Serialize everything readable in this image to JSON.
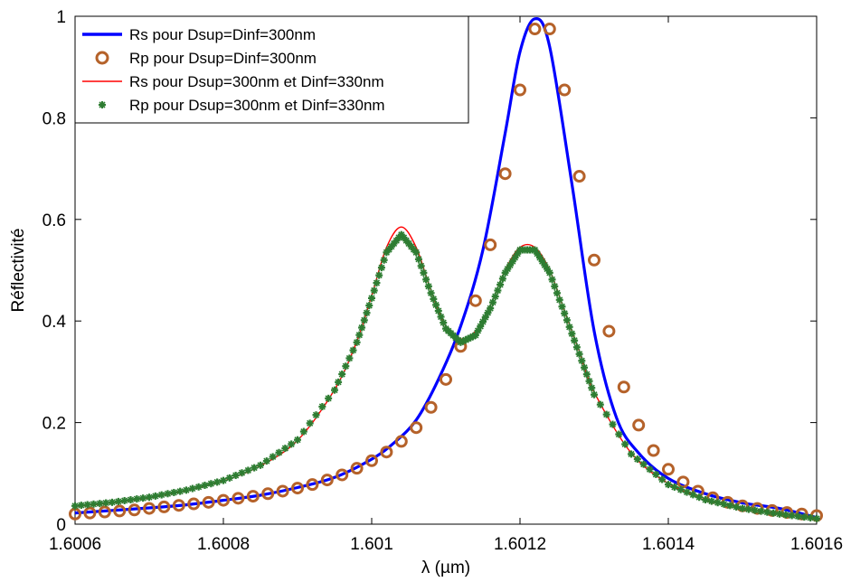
{
  "chart_data": {
    "type": "line",
    "xlabel": "λ (µm)",
    "ylabel": "Réflectivité",
    "xlim": [
      1.6006,
      1.6016
    ],
    "ylim": [
      0,
      1
    ],
    "x_ticks": [
      "1.6006",
      "1.6008",
      "1.601",
      "1.6012",
      "1.6014",
      "1.6016"
    ],
    "y_ticks": [
      "0",
      "0.2",
      "0.4",
      "0.6",
      "0.8",
      "1"
    ],
    "grid": false,
    "legend_position": "top-left",
    "series": [
      {
        "name": "Rs pour Dsup=Dinf=300nm",
        "style": "solid-thick",
        "color": "#0000ff",
        "x": [
          1.6006,
          1.60065,
          1.6007,
          1.60075,
          1.6008,
          1.60085,
          1.6009,
          1.60095,
          1.601,
          1.60103,
          1.60106,
          1.60109,
          1.60112,
          1.60115,
          1.60118,
          1.6012,
          1.60122,
          1.60124,
          1.60127,
          1.6013,
          1.60133,
          1.60136,
          1.6014,
          1.60145,
          1.6015,
          1.60155,
          1.6016
        ],
        "y": [
          0.022,
          0.027,
          0.032,
          0.038,
          0.047,
          0.057,
          0.072,
          0.092,
          0.128,
          0.16,
          0.205,
          0.285,
          0.39,
          0.54,
          0.77,
          0.93,
          0.995,
          0.94,
          0.67,
          0.38,
          0.21,
          0.14,
          0.09,
          0.06,
          0.042,
          0.031,
          0.013
        ]
      },
      {
        "name": "Rp pour Dsup=Dinf=300nm",
        "style": "circle-markers",
        "color": "#b5622a",
        "x": [
          1.6006,
          1.60062,
          1.60064,
          1.60066,
          1.60068,
          1.6007,
          1.60072,
          1.60074,
          1.60076,
          1.60078,
          1.6008,
          1.60082,
          1.60084,
          1.60086,
          1.60088,
          1.6009,
          1.60092,
          1.60094,
          1.60096,
          1.60098,
          1.601,
          1.60102,
          1.60104,
          1.60106,
          1.60108,
          1.6011,
          1.60112,
          1.60114,
          1.60116,
          1.60118,
          1.6012,
          1.60122,
          1.60124,
          1.60126,
          1.60128,
          1.6013,
          1.60132,
          1.60134,
          1.60136,
          1.60138,
          1.6014,
          1.60142,
          1.60144,
          1.60146,
          1.60148,
          1.6015,
          1.60152,
          1.60154,
          1.60156,
          1.60158,
          1.6016
        ],
        "y": [
          0.02,
          0.022,
          0.024,
          0.026,
          0.028,
          0.031,
          0.034,
          0.037,
          0.04,
          0.043,
          0.047,
          0.051,
          0.055,
          0.06,
          0.065,
          0.071,
          0.078,
          0.087,
          0.097,
          0.11,
          0.125,
          0.142,
          0.163,
          0.19,
          0.23,
          0.285,
          0.35,
          0.44,
          0.55,
          0.69,
          0.855,
          0.975,
          0.975,
          0.855,
          0.685,
          0.52,
          0.38,
          0.27,
          0.195,
          0.145,
          0.108,
          0.083,
          0.065,
          0.052,
          0.043,
          0.036,
          0.031,
          0.027,
          0.023,
          0.02,
          0.017
        ]
      },
      {
        "name": "Rs pour Dsup=300nm et Dinf=330nm",
        "style": "solid-thin",
        "color": "#ff0000",
        "x": [
          1.6006,
          1.60065,
          1.6007,
          1.60075,
          1.6008,
          1.60085,
          1.6009,
          1.60095,
          1.60098,
          1.601,
          1.60102,
          1.60104,
          1.60106,
          1.60108,
          1.6011,
          1.60112,
          1.60114,
          1.60116,
          1.60118,
          1.6012,
          1.60122,
          1.60124,
          1.60126,
          1.60128,
          1.6013,
          1.60135,
          1.6014,
          1.60145,
          1.6015,
          1.60155,
          1.6016
        ],
        "y": [
          0.035,
          0.042,
          0.052,
          0.066,
          0.085,
          0.115,
          0.165,
          0.265,
          0.36,
          0.45,
          0.545,
          0.585,
          0.545,
          0.46,
          0.39,
          0.365,
          0.38,
          0.43,
          0.5,
          0.545,
          0.545,
          0.5,
          0.42,
          0.34,
          0.26,
          0.14,
          0.08,
          0.05,
          0.033,
          0.022,
          0.012
        ]
      },
      {
        "name": "Rp pour Dsup=300nm et Dinf=330nm",
        "style": "star-markers",
        "color": "#2e7d32",
        "x": [
          1.6006,
          1.60065,
          1.6007,
          1.60075,
          1.6008,
          1.60085,
          1.6009,
          1.60095,
          1.60098,
          1.601,
          1.60102,
          1.60104,
          1.60106,
          1.60108,
          1.6011,
          1.60112,
          1.60114,
          1.60116,
          1.60118,
          1.6012,
          1.60122,
          1.60124,
          1.60126,
          1.60128,
          1.6013,
          1.60135,
          1.6014,
          1.60145,
          1.6015,
          1.60155,
          1.6016
        ],
        "y": [
          0.036,
          0.043,
          0.053,
          0.067,
          0.086,
          0.116,
          0.166,
          0.264,
          0.358,
          0.445,
          0.535,
          0.57,
          0.535,
          0.455,
          0.385,
          0.358,
          0.372,
          0.425,
          0.495,
          0.54,
          0.54,
          0.495,
          0.415,
          0.335,
          0.255,
          0.138,
          0.078,
          0.048,
          0.031,
          0.02,
          0.011
        ]
      }
    ]
  }
}
